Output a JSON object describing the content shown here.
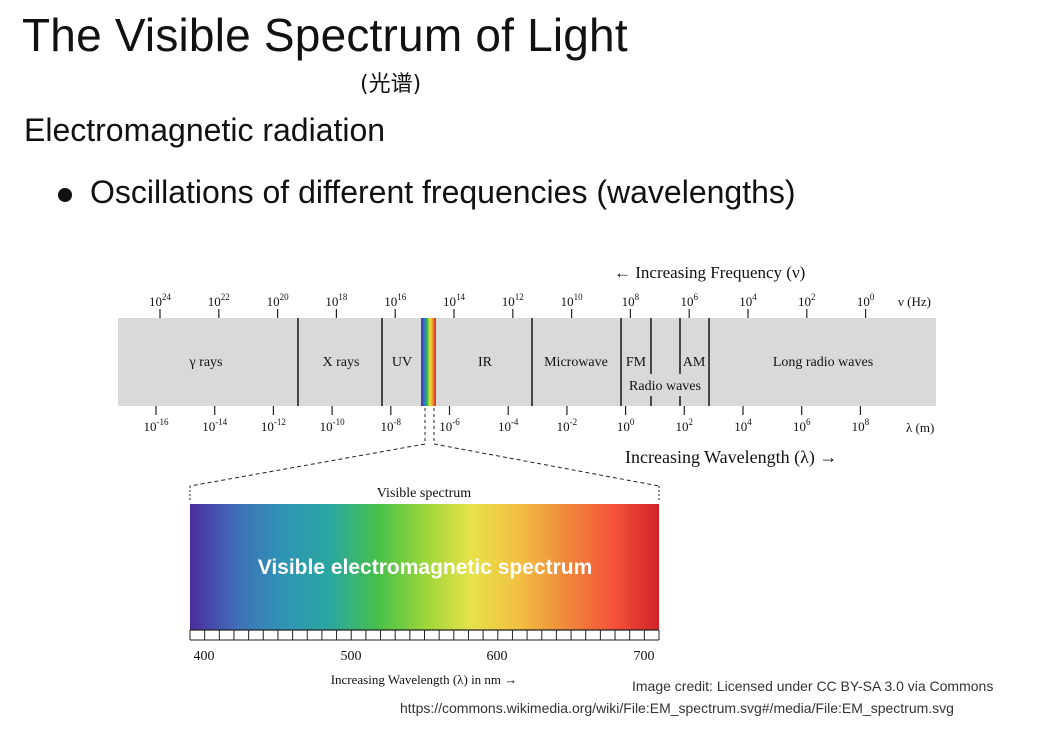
{
  "slide": {
    "title": "The Visible Spectrum of Light",
    "subtitle_cn": "(光谱)",
    "heading": "Electromagnetic radiation",
    "bullets": [
      "Oscillations of different frequencies (wavelengths)"
    ]
  },
  "figure": {
    "frequency_arrow_label": "← Increasing Frequency (ν)",
    "frequency_unit": "ν (Hz)",
    "frequency_ticks": [
      {
        "base": "10",
        "exp": "24"
      },
      {
        "base": "10",
        "exp": "22"
      },
      {
        "base": "10",
        "exp": "20"
      },
      {
        "base": "10",
        "exp": "18"
      },
      {
        "base": "10",
        "exp": "16"
      },
      {
        "base": "10",
        "exp": "14"
      },
      {
        "base": "10",
        "exp": "12"
      },
      {
        "base": "10",
        "exp": "10"
      },
      {
        "base": "10",
        "exp": "8"
      },
      {
        "base": "10",
        "exp": "6"
      },
      {
        "base": "10",
        "exp": "4"
      },
      {
        "base": "10",
        "exp": "2"
      },
      {
        "base": "10",
        "exp": "0"
      }
    ],
    "wavelength_unit": "λ (m)",
    "wavelength_ticks": [
      {
        "base": "10",
        "exp": "-16"
      },
      {
        "base": "10",
        "exp": "-14"
      },
      {
        "base": "10",
        "exp": "-12"
      },
      {
        "base": "10",
        "exp": "-10"
      },
      {
        "base": "10",
        "exp": "-8"
      },
      {
        "base": "10",
        "exp": "-6"
      },
      {
        "base": "10",
        "exp": "-4"
      },
      {
        "base": "10",
        "exp": "-2"
      },
      {
        "base": "10",
        "exp": "0"
      },
      {
        "base": "10",
        "exp": "2"
      },
      {
        "base": "10",
        "exp": "4"
      },
      {
        "base": "10",
        "exp": "6"
      },
      {
        "base": "10",
        "exp": "8"
      }
    ],
    "wavelength_arrow_label": "Increasing Wavelength (λ) →",
    "bands": {
      "gamma": "γ rays",
      "xray": "X rays",
      "uv": "UV",
      "ir": "IR",
      "microwave": "Microwave",
      "fm": "FM",
      "am": "AM",
      "radio": "Radio waves",
      "long_radio": "Long radio waves"
    },
    "visible": {
      "caption": "Visible spectrum",
      "overlay_text": "Visible electromagnetic spectrum",
      "tick_labels": [
        "400",
        "500",
        "600",
        "700"
      ],
      "axis_label": "Increasing Wavelength (λ) in nm →",
      "gradient_colors": [
        "#4b2c9e",
        "#3f6fb8",
        "#2f95b5",
        "#2aa7a0",
        "#46c04a",
        "#9ad63a",
        "#e8e24a",
        "#f2c043",
        "#ef8a3b",
        "#f5553a",
        "#d1222a"
      ]
    }
  },
  "credit": {
    "line1": "Image credit: Licensed under CC BY-SA 3.0 via Commons",
    "url": "https://commons.wikimedia.org/wiki/File:EM_spectrum.svg#/media/File:EM_spectrum.svg"
  }
}
